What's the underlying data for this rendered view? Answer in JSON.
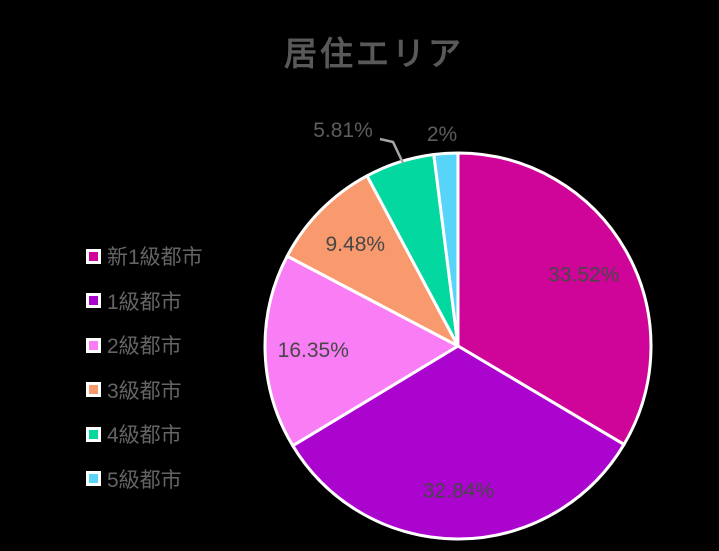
{
  "chart_data": {
    "type": "pie",
    "title": "居住エリア",
    "categories": [
      "新1級都市",
      "1級都市",
      "2級都市",
      "3級都市",
      "4級都市",
      "5級都市"
    ],
    "values": [
      33.52,
      32.84,
      16.35,
      9.48,
      5.81,
      2
    ],
    "display_labels": [
      "33.52%",
      "32.84%",
      "16.35%",
      "9.48%",
      "5.81%",
      "2%"
    ],
    "colors": [
      "#cf0499",
      "#ab04cf",
      "#f97df5",
      "#f89a6e",
      "#04d8a1",
      "#58d4f8"
    ],
    "label_placement": [
      "inside",
      "inside",
      "inside",
      "inside",
      "outside",
      "outside"
    ],
    "start_angle_deg": 0,
    "direction": "clockwise",
    "slice_border_color": "#ffffff",
    "leader_line_color": "#a6a6a6",
    "legend_position": "left",
    "title_color": "#595959",
    "label_color_inside": "#474747",
    "label_color_outside": "#5d5d5d",
    "background_color": "#000000"
  }
}
